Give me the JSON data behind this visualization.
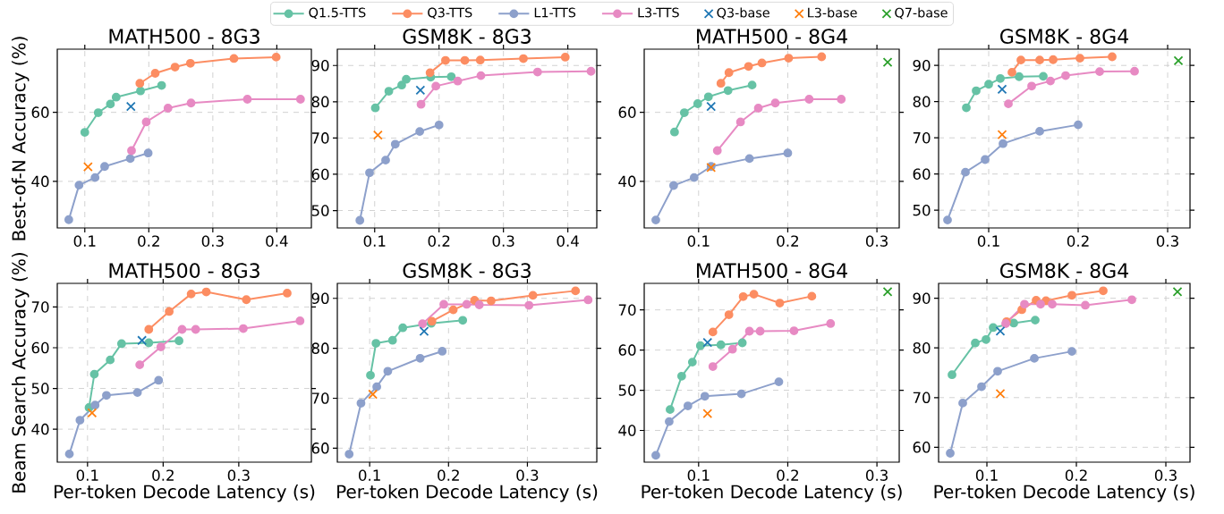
{
  "chart_data": [
    {
      "type": "line",
      "title": "MATH500 - 8G3",
      "ylabel": "Best-of-N Accuracy (%)",
      "xlim": [
        0.057,
        0.454
      ],
      "ylim": [
        26.5,
        78.3
      ],
      "xticks": [
        0.1,
        0.2,
        0.3,
        0.4
      ],
      "yticks": [
        40,
        60
      ],
      "grid": true,
      "marker": "circle",
      "series": [
        {
          "color": "#66c2a5",
          "x": [
            0.1,
            0.121,
            0.14,
            0.149,
            0.187,
            0.22
          ],
          "values": [
            54.2,
            59.9,
            62.4,
            64.4,
            66.2,
            67.8
          ]
        },
        {
          "color": "#fc8d62",
          "x": [
            0.186,
            0.21,
            0.241,
            0.265,
            0.333,
            0.399
          ],
          "values": [
            68.4,
            71.3,
            73.1,
            74.2,
            75.6,
            76.0
          ]
        },
        {
          "color": "#8da0cb",
          "x": [
            0.075,
            0.091,
            0.116,
            0.131,
            0.171,
            0.199
          ],
          "values": [
            28.9,
            38.9,
            41.1,
            44.3,
            46.6,
            48.2
          ]
        },
        {
          "color": "#e78ac3",
          "x": [
            0.173,
            0.196,
            0.23,
            0.266,
            0.354,
            0.437
          ],
          "values": [
            48.9,
            57.2,
            61.2,
            62.7,
            63.8,
            63.8
          ]
        },
        {
          "type": "scatter",
          "marker": "cross",
          "color": "#1f77b4",
          "x": [
            0.172
          ],
          "values": [
            61.7
          ]
        },
        {
          "type": "scatter",
          "marker": "cross",
          "color": "#ff7f0e",
          "x": [
            0.105
          ],
          "values": [
            44.2
          ]
        }
      ]
    },
    {
      "type": "line",
      "title": "GSM8K - 8G3",
      "xlim": [
        0.042,
        0.445
      ],
      "ylim": [
        45.2,
        94.5
      ],
      "xticks": [
        0.1,
        0.2,
        0.3,
        0.4
      ],
      "yticks": [
        50,
        60,
        70,
        80,
        90
      ],
      "grid": true,
      "marker": "circle",
      "series": [
        {
          "color": "#66c2a5",
          "x": [
            0.101,
            0.122,
            0.142,
            0.149,
            0.187,
            0.219
          ],
          "values": [
            78.3,
            82.9,
            84.6,
            86.2,
            86.8,
            86.9
          ]
        },
        {
          "color": "#fc8d62",
          "x": [
            0.186,
            0.21,
            0.24,
            0.264,
            0.331,
            0.396
          ],
          "values": [
            88.0,
            91.4,
            91.4,
            91.5,
            91.9,
            92.3
          ]
        },
        {
          "color": "#8da0cb",
          "x": [
            0.077,
            0.092,
            0.117,
            0.132,
            0.17,
            0.2
          ],
          "values": [
            47.3,
            60.4,
            63.9,
            68.3,
            71.8,
            73.6
          ]
        },
        {
          "color": "#e78ac3",
          "x": [
            0.172,
            0.195,
            0.229,
            0.265,
            0.353,
            0.436
          ],
          "values": [
            79.3,
            84.3,
            85.7,
            87.2,
            88.2,
            88.4
          ]
        },
        {
          "type": "scatter",
          "marker": "cross",
          "color": "#1f77b4",
          "x": [
            0.171
          ],
          "values": [
            83.2
          ]
        },
        {
          "type": "scatter",
          "marker": "cross",
          "color": "#ff7f0e",
          "x": [
            0.105
          ],
          "values": [
            70.8
          ]
        }
      ]
    },
    {
      "type": "line",
      "title": "MATH500 - 8G4",
      "xlim": [
        0.039,
        0.325
      ],
      "ylim": [
        26.5,
        78.3
      ],
      "xticks": [
        0.1,
        0.2,
        0.3
      ],
      "yticks": [
        40,
        60
      ],
      "grid": true,
      "marker": "circle",
      "legend": "top",
      "series": [
        {
          "name": "Q1.5-TTS",
          "color": "#66c2a5",
          "x": [
            0.073,
            0.084,
            0.099,
            0.111,
            0.133,
            0.16
          ],
          "values": [
            54.3,
            59.9,
            62.5,
            64.5,
            66.3,
            67.9
          ]
        },
        {
          "name": "Q3-TTS",
          "color": "#fc8d62",
          "x": [
            0.125,
            0.134,
            0.156,
            0.171,
            0.201,
            0.238
          ],
          "values": [
            68.4,
            71.5,
            73.3,
            74.3,
            75.7,
            76.1
          ]
        },
        {
          "name": "L1-TTS",
          "color": "#8da0cb",
          "x": [
            0.052,
            0.072,
            0.095,
            0.114,
            0.157,
            0.2
          ],
          "values": [
            28.8,
            38.8,
            41.1,
            44.3,
            46.6,
            48.2
          ]
        },
        {
          "name": "L3-TTS",
          "color": "#e78ac3",
          "x": [
            0.121,
            0.147,
            0.167,
            0.186,
            0.224,
            0.26
          ],
          "values": [
            48.9,
            57.2,
            61.2,
            62.7,
            63.8,
            63.8
          ]
        },
        {
          "name": "Q3-base",
          "type": "scatter",
          "marker": "cross",
          "color": "#1f77b4",
          "x": [
            0.114
          ],
          "values": [
            61.7
          ]
        },
        {
          "name": "L3-base",
          "type": "scatter",
          "marker": "cross",
          "color": "#ff7f0e",
          "x": [
            0.114
          ],
          "values": [
            44.0
          ]
        },
        {
          "name": "Q7-base",
          "type": "scatter",
          "marker": "cross",
          "color": "#2ca02c",
          "x": [
            0.312
          ],
          "values": [
            74.5
          ]
        }
      ]
    },
    {
      "type": "line",
      "title": "GSM8K - 8G4",
      "xlim": [
        0.044,
        0.325
      ],
      "ylim": [
        45.1,
        94.5
      ],
      "xticks": [
        0.1,
        0.2,
        0.3
      ],
      "yticks": [
        50,
        60,
        70,
        80,
        90
      ],
      "grid": true,
      "marker": "circle",
      "series": [
        {
          "color": "#66c2a5",
          "x": [
            0.075,
            0.086,
            0.1,
            0.113,
            0.134,
            0.161
          ],
          "values": [
            78.3,
            83.0,
            84.8,
            86.4,
            86.9,
            87.0
          ]
        },
        {
          "color": "#fc8d62",
          "x": [
            0.126,
            0.136,
            0.157,
            0.172,
            0.202,
            0.238
          ],
          "values": [
            88.1,
            91.5,
            91.5,
            91.6,
            92.0,
            92.4
          ]
        },
        {
          "color": "#8da0cb",
          "x": [
            0.054,
            0.074,
            0.096,
            0.116,
            0.157,
            0.2
          ],
          "values": [
            47.3,
            60.5,
            64.0,
            68.4,
            71.8,
            73.6
          ]
        },
        {
          "color": "#e78ac3",
          "x": [
            0.122,
            0.148,
            0.169,
            0.186,
            0.224,
            0.263
          ],
          "values": [
            79.4,
            84.3,
            85.7,
            87.2,
            88.3,
            88.4
          ]
        },
        {
          "type": "scatter",
          "marker": "cross",
          "color": "#1f77b4",
          "x": [
            0.115
          ],
          "values": [
            83.4
          ]
        },
        {
          "type": "scatter",
          "marker": "cross",
          "color": "#ff7f0e",
          "x": [
            0.115
          ],
          "values": [
            70.9
          ]
        },
        {
          "type": "scatter",
          "marker": "cross",
          "color": "#2ca02c",
          "x": [
            0.312
          ],
          "values": [
            91.3
          ]
        }
      ]
    },
    {
      "type": "line",
      "title": "MATH500 - 8G3",
      "ylabel": "Beam Search Accuracy (%)",
      "xlabel": "Per-token Decode Latency (s)",
      "xlim": [
        0.06,
        0.396
      ],
      "ylim": [
        31.9,
        75.8
      ],
      "xticks": [
        0.1,
        0.2,
        0.3
      ],
      "yticks": [
        40,
        50,
        60,
        70
      ],
      "grid": true,
      "marker": "circle",
      "series": [
        {
          "color": "#66c2a5",
          "x": [
            0.102,
            0.109,
            0.13,
            0.145,
            0.181,
            0.221
          ],
          "values": [
            45.3,
            53.5,
            57.0,
            61.0,
            61.2,
            61.7
          ]
        },
        {
          "color": "#fc8d62",
          "x": [
            0.181,
            0.208,
            0.237,
            0.257,
            0.31,
            0.364
          ],
          "values": [
            64.5,
            68.9,
            73.2,
            73.7,
            71.8,
            73.4
          ]
        },
        {
          "color": "#8da0cb",
          "x": [
            0.076,
            0.09,
            0.11,
            0.125,
            0.166,
            0.194
          ],
          "values": [
            33.9,
            42.2,
            45.9,
            48.3,
            49.0,
            52.0
          ]
        },
        {
          "color": "#e78ac3",
          "x": [
            0.169,
            0.197,
            0.225,
            0.243,
            0.306,
            0.381
          ],
          "values": [
            55.8,
            60.2,
            64.5,
            64.5,
            64.7,
            66.6
          ]
        },
        {
          "type": "scatter",
          "marker": "cross",
          "color": "#1f77b4",
          "x": [
            0.172
          ],
          "values": [
            61.8
          ]
        },
        {
          "type": "scatter",
          "marker": "cross",
          "color": "#ff7f0e",
          "x": [
            0.106
          ],
          "values": [
            44.0
          ]
        }
      ]
    },
    {
      "type": "line",
      "title": "GSM8K - 8G3",
      "xlabel": "Per-token Decode Latency (s)",
      "xlim": [
        0.059,
        0.388
      ],
      "ylim": [
        57.2,
        93.0
      ],
      "xticks": [
        0.1,
        0.2,
        0.3
      ],
      "yticks": [
        60,
        70,
        80,
        90
      ],
      "grid": true,
      "marker": "circle",
      "series": [
        {
          "color": "#66c2a5",
          "x": [
            0.101,
            0.108,
            0.129,
            0.142,
            0.178,
            0.218
          ],
          "values": [
            74.6,
            81.0,
            81.6,
            84.1,
            85.0,
            85.6
          ]
        },
        {
          "color": "#fc8d62",
          "x": [
            0.179,
            0.206,
            0.233,
            0.254,
            0.307,
            0.361
          ],
          "values": [
            85.4,
            87.7,
            89.6,
            89.5,
            90.6,
            91.5
          ]
        },
        {
          "color": "#8da0cb",
          "x": [
            0.074,
            0.089,
            0.109,
            0.123,
            0.164,
            0.192
          ],
          "values": [
            58.8,
            69.0,
            72.3,
            75.4,
            78.0,
            79.4
          ]
        },
        {
          "color": "#e78ac3",
          "x": [
            0.167,
            0.194,
            0.223,
            0.239,
            0.302,
            0.377
          ],
          "values": [
            84.9,
            88.8,
            88.8,
            88.7,
            88.6,
            89.7
          ]
        },
        {
          "type": "scatter",
          "marker": "cross",
          "color": "#1f77b4",
          "x": [
            0.169
          ],
          "values": [
            83.4
          ]
        },
        {
          "type": "scatter",
          "marker": "cross",
          "color": "#ff7f0e",
          "x": [
            0.104
          ],
          "values": [
            70.8
          ]
        }
      ]
    },
    {
      "type": "line",
      "title": "MATH500 - 8G4",
      "xlabel": "Per-token Decode Latency (s)",
      "xlim": [
        0.039,
        0.325
      ],
      "ylim": [
        32.1,
        76.6
      ],
      "xticks": [
        0.1,
        0.2,
        0.3
      ],
      "yticks": [
        40,
        50,
        60,
        70
      ],
      "grid": true,
      "marker": "circle",
      "series": [
        {
          "color": "#66c2a5",
          "x": [
            0.068,
            0.081,
            0.093,
            0.102,
            0.125,
            0.149
          ],
          "values": [
            45.2,
            53.5,
            57.0,
            61.1,
            61.3,
            61.8
          ]
        },
        {
          "color": "#fc8d62",
          "x": [
            0.116,
            0.134,
            0.15,
            0.162,
            0.191,
            0.227
          ],
          "values": [
            64.5,
            68.8,
            73.3,
            73.9,
            71.7,
            73.4
          ]
        },
        {
          "color": "#8da0cb",
          "x": [
            0.052,
            0.067,
            0.088,
            0.107,
            0.148,
            0.19
          ],
          "values": [
            33.8,
            42.2,
            46.1,
            48.5,
            49.1,
            52.1
          ]
        },
        {
          "color": "#e78ac3",
          "x": [
            0.116,
            0.138,
            0.157,
            0.169,
            0.207,
            0.248
          ],
          "values": [
            55.9,
            60.2,
            64.7,
            64.7,
            64.8,
            66.6
          ]
        },
        {
          "type": "scatter",
          "marker": "cross",
          "color": "#1f77b4",
          "x": [
            0.11
          ],
          "values": [
            61.9
          ]
        },
        {
          "type": "scatter",
          "marker": "cross",
          "color": "#ff7f0e",
          "x": [
            0.11
          ],
          "values": [
            44.2
          ]
        },
        {
          "type": "scatter",
          "marker": "cross",
          "color": "#2ca02c",
          "x": [
            0.312
          ],
          "values": [
            74.5
          ]
        }
      ]
    },
    {
      "type": "line",
      "title": "GSM8K - 8G4",
      "xlabel": "Per-token Decode Latency (s)",
      "xlim": [
        0.046,
        0.327
      ],
      "ylim": [
        57.0,
        93.0
      ],
      "xticks": [
        0.1,
        0.2,
        0.3
      ],
      "yticks": [
        60,
        70,
        80,
        90
      ],
      "grid": true,
      "marker": "circle",
      "series": [
        {
          "color": "#66c2a5",
          "x": [
            0.061,
            0.087,
            0.099,
            0.107,
            0.13,
            0.154
          ],
          "values": [
            74.6,
            81.0,
            81.7,
            84.1,
            85.0,
            85.6
          ]
        },
        {
          "color": "#fc8d62",
          "x": [
            0.122,
            0.139,
            0.155,
            0.166,
            0.195,
            0.23
          ],
          "values": [
            85.3,
            87.7,
            89.6,
            89.5,
            90.6,
            91.5
          ]
        },
        {
          "color": "#8da0cb",
          "x": [
            0.059,
            0.073,
            0.094,
            0.112,
            0.153,
            0.195
          ],
          "values": [
            58.8,
            68.9,
            72.2,
            75.3,
            77.9,
            79.3
          ]
        },
        {
          "color": "#e78ac3",
          "x": [
            0.121,
            0.142,
            0.16,
            0.173,
            0.21,
            0.262
          ],
          "values": [
            84.9,
            88.8,
            88.8,
            88.8,
            88.6,
            89.7
          ]
        },
        {
          "type": "scatter",
          "marker": "cross",
          "color": "#1f77b4",
          "x": [
            0.115
          ],
          "values": [
            83.4
          ]
        },
        {
          "type": "scatter",
          "marker": "cross",
          "color": "#ff7f0e",
          "x": [
            0.115
          ],
          "values": [
            70.8
          ]
        },
        {
          "type": "scatter",
          "marker": "cross",
          "color": "#2ca02c",
          "x": [
            0.313
          ],
          "values": [
            91.3
          ]
        }
      ]
    }
  ]
}
